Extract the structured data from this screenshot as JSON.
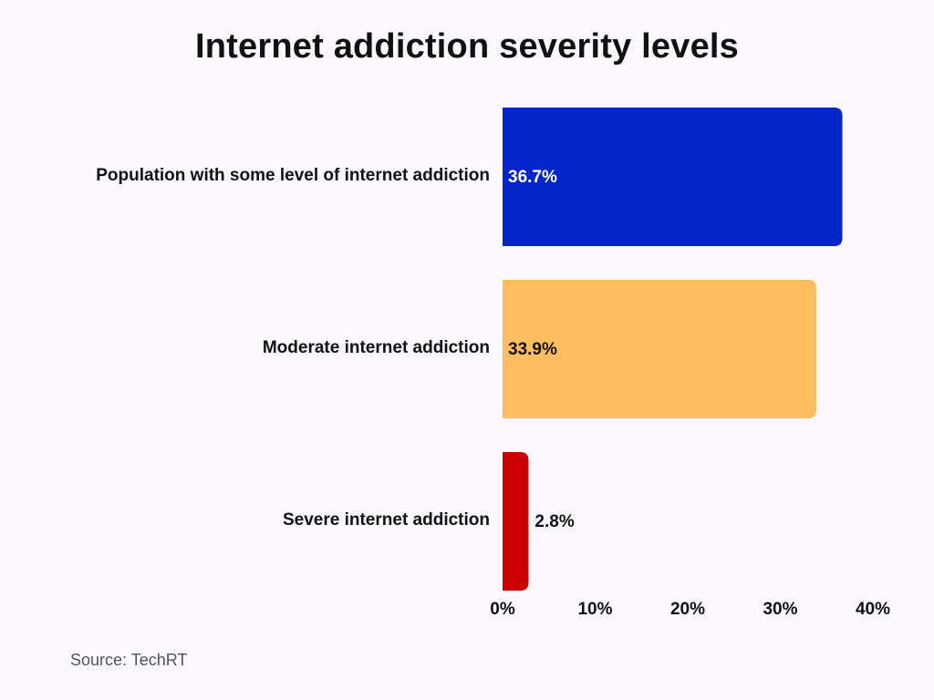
{
  "chart_data": {
    "type": "bar",
    "orientation": "horizontal",
    "title": "Internet addiction severity levels",
    "categories": [
      "Population with some level of internet addiction",
      "Moderate internet addiction",
      "Severe internet addiction"
    ],
    "values": [
      36.7,
      33.9,
      2.8
    ],
    "data_labels": [
      "36.7%",
      "33.9%",
      "2.8%"
    ],
    "bar_colors": [
      "#0524c9",
      "#febd5e",
      "#cc0000"
    ],
    "data_label_colors": [
      "#ffffff",
      "#111111",
      "#111111"
    ],
    "xlim": [
      0,
      40
    ],
    "xticks": [
      0,
      10,
      20,
      30,
      40
    ],
    "xtick_labels": [
      "0%",
      "10%",
      "20%",
      "30%",
      "40%"
    ],
    "grid": false,
    "legend": "none"
  },
  "source": "Source: TechRT"
}
